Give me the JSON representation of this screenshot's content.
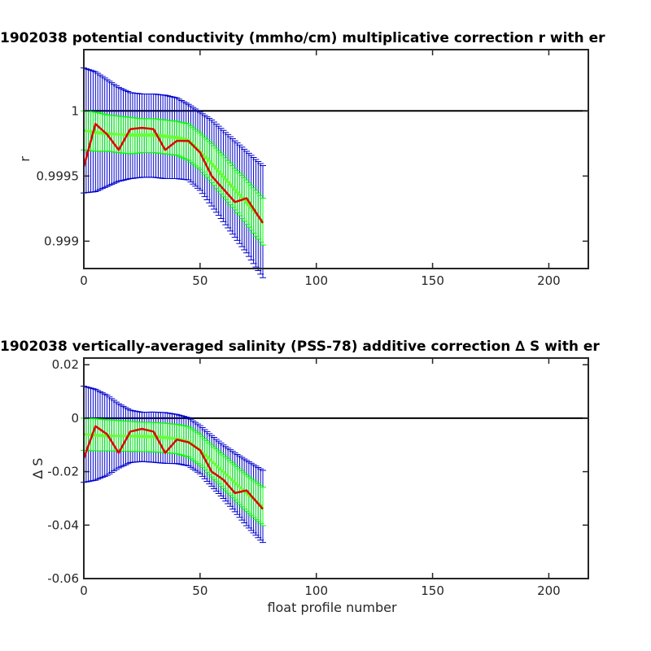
{
  "colors": {
    "background": "#ffffff",
    "axes": "#262626",
    "reference_line": "#000000",
    "outer_error_bars": "#0000cc",
    "inner_error_bars": "#00ff00",
    "mean_curve": "#66ff33",
    "series_curve": "#e00000"
  },
  "chart_data": [
    {
      "type": "line",
      "title": "1902038 potential conductivity (mmho/cm) multiplicative correction r with er",
      "xlabel": "",
      "ylabel": "r",
      "xlim": [
        0,
        217
      ],
      "ylim": [
        0.99879,
        1.00047
      ],
      "xticks": [
        0,
        50,
        100,
        150,
        200
      ],
      "yticks": [
        0.999,
        0.9995,
        1
      ],
      "ytick_labels": [
        "0.999",
        "0.9995",
        "1"
      ],
      "grid": false,
      "reference_line": 1,
      "x": [
        0,
        5,
        10,
        15,
        20,
        25,
        30,
        35,
        40,
        45,
        50,
        55,
        60,
        65,
        70,
        77
      ],
      "series": [
        {
          "values": [
            0.99957,
            0.9999,
            0.99982,
            0.9997,
            0.99986,
            0.99987,
            0.99986,
            0.9997,
            0.99977,
            0.99977,
            0.99968,
            0.9995,
            0.9994,
            0.9993,
            0.99933,
            0.99914
          ]
        },
        {
          "values": [
            0.99985,
            0.99984,
            0.99983,
            0.99982,
            0.99981,
            0.99981,
            0.99981,
            0.9998,
            0.99979,
            0.99976,
            0.99969,
            0.9996,
            0.9995,
            0.9994,
            0.9993,
            0.99915
          ]
        },
        {
          "values": [
            0.99985,
            0.99983,
            0.99982,
            0.99982,
            0.99982,
            0.99982,
            0.99982,
            0.99981,
            0.9998,
            0.99978,
            0.99969,
            0.99959,
            0.99949,
            0.99939,
            0.99929,
            0.99915
          ]
        }
      ],
      "error_bands": [
        {
          "half_width": [
            0.00015,
            0.00015,
            0.00014,
            0.00014,
            0.00014,
            0.00013,
            0.00013,
            0.00013,
            0.00013,
            0.00014,
            0.00014,
            0.00015,
            0.00016,
            0.00016,
            0.00017,
            0.00018
          ]
        },
        {
          "half_width": [
            0.00048,
            0.00046,
            0.00041,
            0.00036,
            0.00033,
            0.00032,
            0.00032,
            0.00032,
            0.00031,
            0.00029,
            0.0003,
            0.00033,
            0.00035,
            0.00037,
            0.00039,
            0.00043
          ]
        }
      ]
    },
    {
      "type": "line",
      "title": "1902038 vertically-averaged salinity (PSS-78) additive correction ∆ S with er",
      "xlabel": "float profile number",
      "ylabel": "∆ S",
      "xlim": [
        0,
        217
      ],
      "ylim": [
        -0.06,
        0.0225
      ],
      "xticks": [
        0,
        50,
        100,
        150,
        200
      ],
      "yticks": [
        -0.06,
        -0.04,
        -0.02,
        0,
        0.02
      ],
      "ytick_labels": [
        "-0.06",
        "-0.04",
        "-0.02",
        "0",
        "0.02"
      ],
      "grid": false,
      "reference_line": 0,
      "x": [
        0,
        5,
        10,
        15,
        20,
        25,
        30,
        35,
        40,
        45,
        50,
        55,
        60,
        65,
        70,
        77
      ],
      "series": [
        {
          "values": [
            -0.015,
            -0.003,
            -0.006,
            -0.013,
            -0.005,
            -0.004,
            -0.005,
            -0.013,
            -0.008,
            -0.009,
            -0.012,
            -0.02,
            -0.023,
            -0.028,
            -0.027,
            -0.034
          ]
        },
        {
          "values": [
            -0.006,
            -0.0062,
            -0.0064,
            -0.0066,
            -0.0068,
            -0.007,
            -0.0071,
            -0.0074,
            -0.0078,
            -0.0088,
            -0.0118,
            -0.016,
            -0.02,
            -0.024,
            -0.028,
            -0.033
          ]
        },
        {
          "values": [
            -0.006,
            -0.0065,
            -0.0068,
            -0.0066,
            -0.0066,
            -0.0066,
            -0.0067,
            -0.007,
            -0.0076,
            -0.0085,
            -0.012,
            -0.0162,
            -0.0202,
            -0.0242,
            -0.0282,
            -0.033
          ]
        }
      ],
      "error_bands": [
        {
          "half_width": [
            0.006,
            0.006,
            0.0058,
            0.0057,
            0.0056,
            0.0055,
            0.0055,
            0.0055,
            0.0055,
            0.0057,
            0.0058,
            0.006,
            0.0063,
            0.0066,
            0.0068,
            0.0072
          ]
        },
        {
          "half_width": [
            0.018,
            0.017,
            0.015,
            0.012,
            0.0098,
            0.0092,
            0.0094,
            0.0095,
            0.0092,
            0.009,
            0.009,
            0.0095,
            0.01,
            0.011,
            0.0122,
            0.0135
          ]
        }
      ]
    }
  ]
}
